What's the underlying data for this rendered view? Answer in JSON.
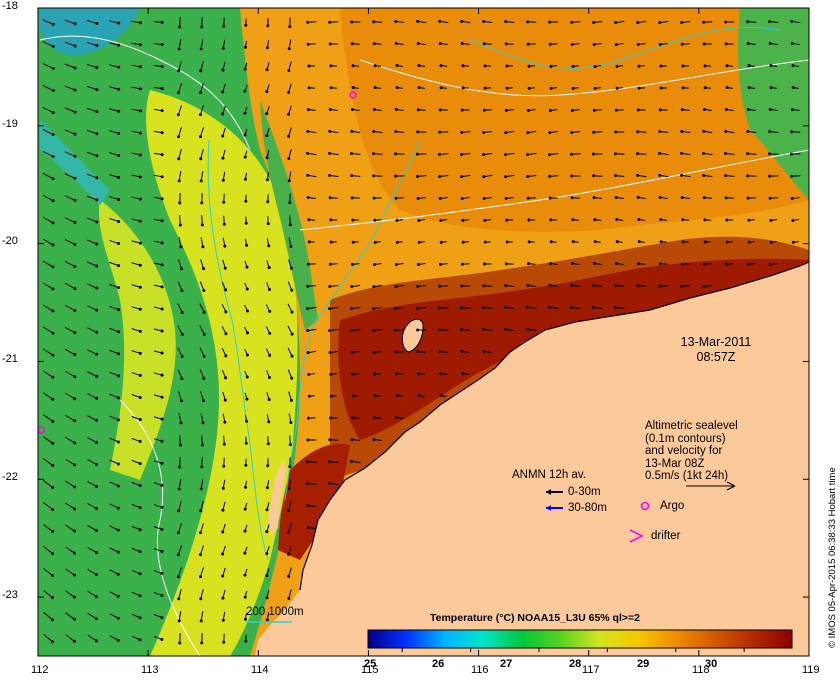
{
  "map": {
    "lat_ticks": [
      "-18",
      "-19",
      "-20",
      "-21",
      "-22",
      "-23"
    ],
    "lon_ticks": [
      "112",
      "113",
      "114",
      "115",
      "116",
      "117",
      "118",
      "119"
    ],
    "lat_range": [
      -23.5,
      -18
    ],
    "lon_range": [
      112,
      119
    ],
    "land_color": "#fcc99b",
    "contour_color": "#2fcfcf",
    "sealevel_contour_color": "#ffffff"
  },
  "date": {
    "line1": "13-Mar-2011",
    "line2": "08:57Z"
  },
  "altimetry": {
    "line1": "Altimetric sealevel",
    "line2": "(0.1m contours)",
    "line3": "and velocity for",
    "line4": "13-Mar 08Z",
    "line5": "0.5m/s (1kt 24h)"
  },
  "legend": {
    "anmn_title": "ANMN 12h av.",
    "anmn_shallow": "0-30m",
    "anmn_deep": "30-80m",
    "anmn_shallow_color": "#000000",
    "anmn_deep_color": "#0000ff",
    "argo": "Argo",
    "argo_color": "#ff00ff",
    "drifter": "drifter",
    "drifter_color": "#ff00ff"
  },
  "bathymetry": {
    "label": "200  1000m"
  },
  "colorbar": {
    "title": "Temperature (°C) NOAA15_L3U 65% ql>=2",
    "ticks": [
      "25",
      "26",
      "27",
      "28",
      "29",
      "30"
    ],
    "range": [
      24.5,
      30.7
    ],
    "stops": [
      "#00008c",
      "#0032ff",
      "#00b4ff",
      "#00e6c8",
      "#00c83c",
      "#5ad21e",
      "#d2e61e",
      "#f5c800",
      "#f08c00",
      "#d25a00",
      "#b42800",
      "#8c0000"
    ]
  },
  "credit": "© IMOS 05-Apr-2015 06:38:33 Hobart time"
}
